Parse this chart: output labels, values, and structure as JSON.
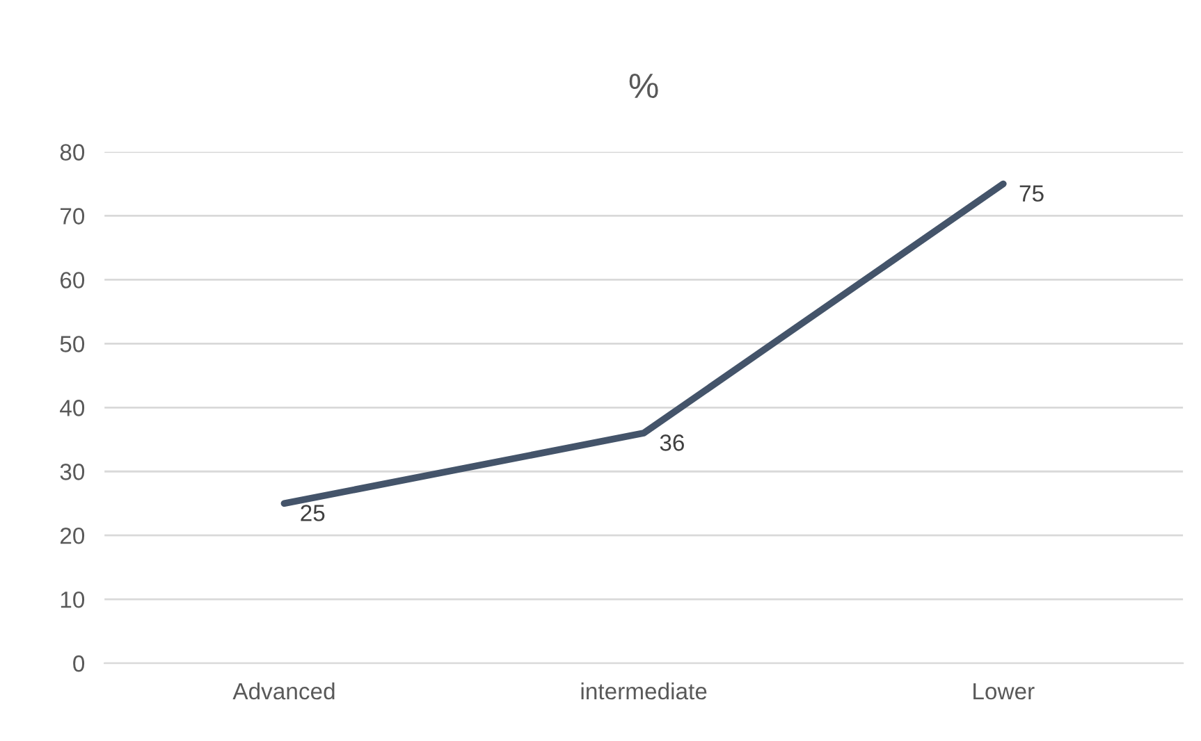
{
  "chart_data": {
    "type": "line",
    "title": "%",
    "categories": [
      "Advanced",
      "intermediate",
      "Lower"
    ],
    "series": [
      {
        "color": "#44546a",
        "values": [
          25,
          36,
          75
        ]
      }
    ],
    "ylim": [
      0,
      80
    ],
    "yticks": [
      0,
      10,
      20,
      30,
      40,
      50,
      60,
      70,
      80
    ],
    "grid": "y",
    "data_labels": true,
    "marker": "none",
    "line_style": "solid"
  }
}
